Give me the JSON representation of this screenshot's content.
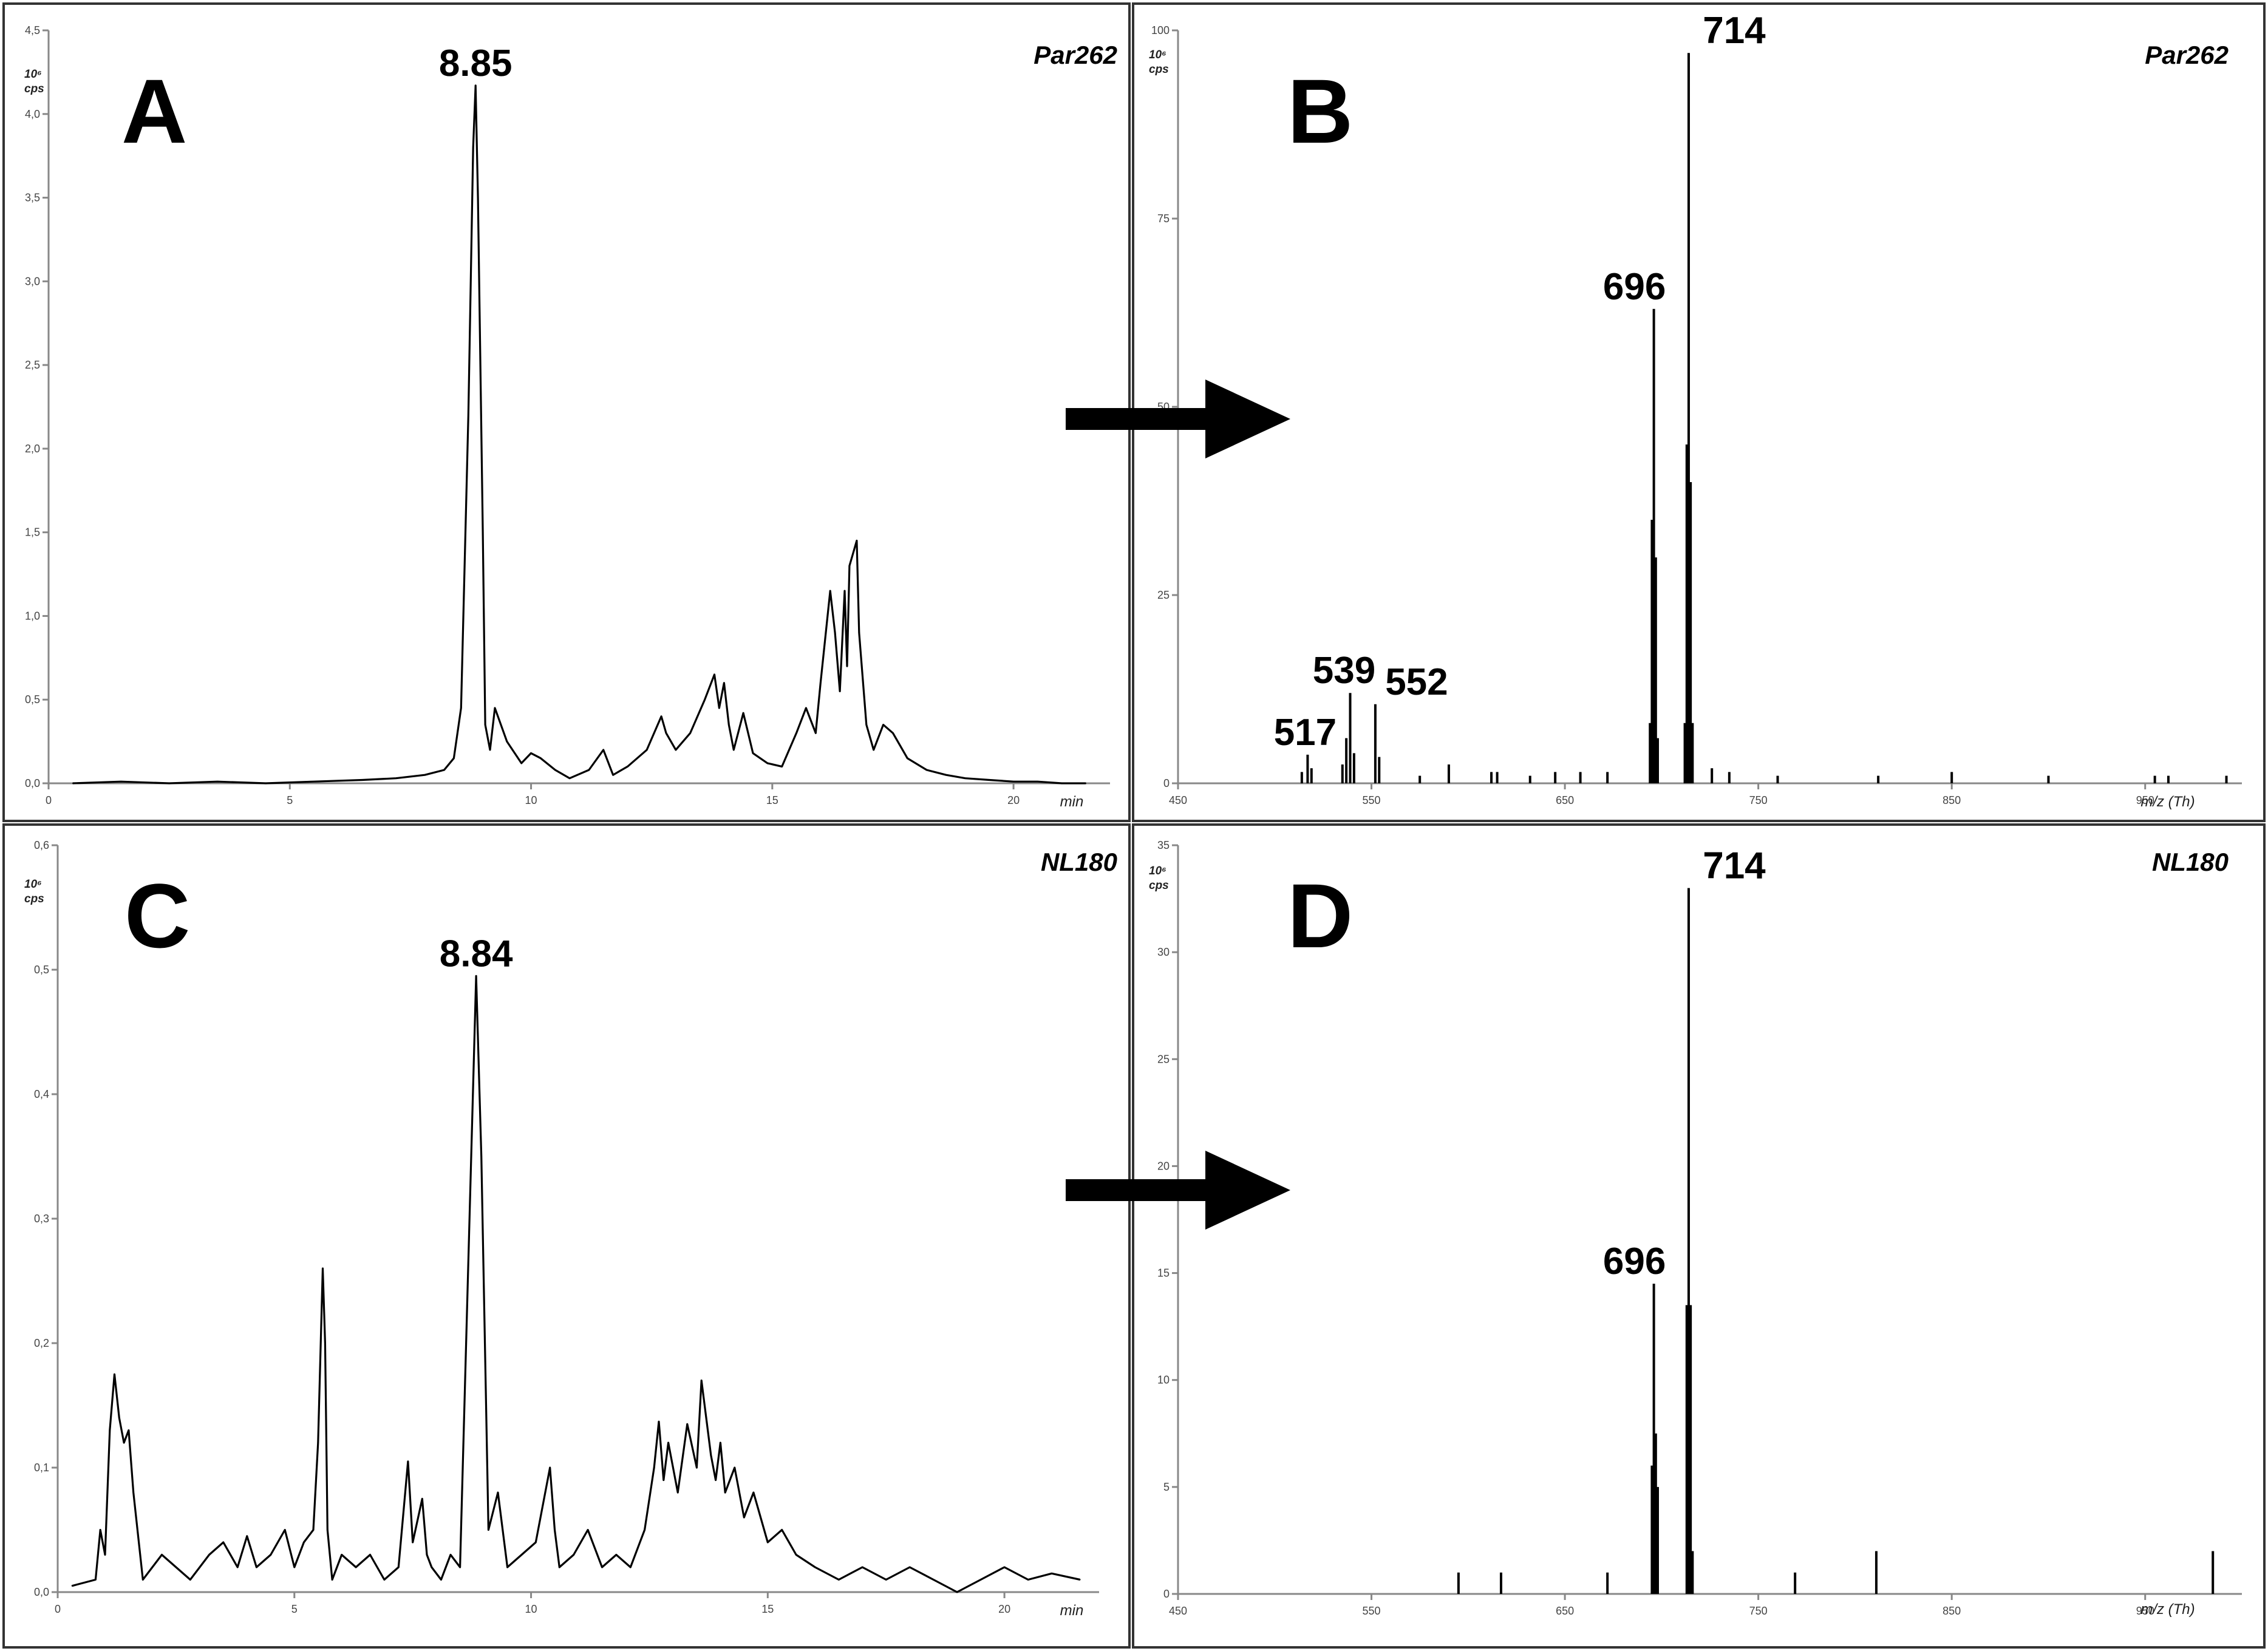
{
  "chart_data": [
    {
      "id": "A",
      "type": "line",
      "panel_letter": "A",
      "sample_label": "Par262",
      "unit_label": [
        "10⁶",
        "cps"
      ],
      "xlabel": "min",
      "xlim": [
        0,
        22
      ],
      "ylim": [
        0,
        4.5
      ],
      "x_ticks": [
        {
          "v": 0,
          "label": "0"
        },
        {
          "v": 5,
          "label": "5"
        },
        {
          "v": 10,
          "label": "10"
        },
        {
          "v": 15,
          "label": "15"
        },
        {
          "v": 20,
          "label": "20"
        }
      ],
      "y_ticks": [
        {
          "v": 0,
          "label": "0,0"
        },
        {
          "v": 0.5,
          "label": "0,5"
        },
        {
          "v": 1.0,
          "label": "1,0"
        },
        {
          "v": 1.5,
          "label": "1,5"
        },
        {
          "v": 2.0,
          "label": "2,0"
        },
        {
          "v": 2.5,
          "label": "2,5"
        },
        {
          "v": 3.0,
          "label": "3,0"
        },
        {
          "v": 3.5,
          "label": "3,5"
        },
        {
          "v": 4.0,
          "label": "4,0"
        },
        {
          "v": 4.5,
          "label": "4,5"
        }
      ],
      "peak_labels": [
        {
          "text": "8.85",
          "x": 8.85,
          "y": 4.17
        }
      ],
      "x": [
        0.5,
        1.5,
        2.5,
        3.5,
        4.5,
        5.5,
        6.5,
        7.2,
        7.8,
        8.2,
        8.4,
        8.55,
        8.7,
        8.8,
        8.85,
        8.9,
        9.0,
        9.05,
        9.15,
        9.25,
        9.5,
        9.8,
        10.0,
        10.2,
        10.5,
        10.8,
        11.2,
        11.5,
        11.7,
        12.0,
        12.4,
        12.7,
        12.8,
        13.0,
        13.3,
        13.6,
        13.8,
        13.9,
        14.0,
        14.1,
        14.2,
        14.4,
        14.6,
        14.9,
        15.2,
        15.5,
        15.7,
        15.9,
        16.0,
        16.2,
        16.3,
        16.4,
        16.5,
        16.55,
        16.6,
        16.75,
        16.8,
        16.95,
        17.1,
        17.3,
        17.5,
        17.8,
        18.2,
        18.6,
        19.0,
        19.5,
        20.0,
        20.5,
        21.0,
        21.5
      ],
      "y": [
        0.0,
        0.01,
        0.0,
        0.01,
        0.0,
        0.01,
        0.02,
        0.03,
        0.05,
        0.08,
        0.15,
        0.45,
        2.2,
        3.8,
        4.17,
        3.5,
        1.5,
        0.35,
        0.2,
        0.45,
        0.25,
        0.12,
        0.18,
        0.15,
        0.08,
        0.03,
        0.08,
        0.2,
        0.05,
        0.1,
        0.2,
        0.4,
        0.3,
        0.2,
        0.3,
        0.5,
        0.65,
        0.45,
        0.6,
        0.35,
        0.2,
        0.42,
        0.18,
        0.12,
        0.1,
        0.3,
        0.45,
        0.3,
        0.6,
        1.15,
        0.9,
        0.55,
        1.15,
        0.7,
        1.3,
        1.45,
        0.9,
        0.35,
        0.2,
        0.35,
        0.3,
        0.15,
        0.08,
        0.05,
        0.03,
        0.02,
        0.01,
        0.01,
        0.0,
        0.0
      ]
    },
    {
      "id": "B",
      "type": "bar",
      "panel_letter": "B",
      "sample_label": "Par262",
      "unit_label": [
        "10⁶",
        "cps"
      ],
      "xlabel": "m/z (Th)",
      "xlim": [
        450,
        1000
      ],
      "ylim": [
        0,
        100
      ],
      "x_ticks": [
        {
          "v": 450,
          "label": "450"
        },
        {
          "v": 550,
          "label": "550"
        },
        {
          "v": 650,
          "label": "650"
        },
        {
          "v": 750,
          "label": "750"
        },
        {
          "v": 850,
          "label": "850"
        },
        {
          "v": 950,
          "label": "950"
        }
      ],
      "y_ticks": [
        {
          "v": 0,
          "label": "0"
        },
        {
          "v": 25,
          "label": "25"
        },
        {
          "v": 50,
          "label": "50"
        },
        {
          "v": 75,
          "label": "75"
        },
        {
          "v": 100,
          "label": "100"
        }
      ],
      "peak_labels": [
        {
          "text": "714",
          "x": 714,
          "y": 97
        },
        {
          "text": "696",
          "x": 696,
          "y": 63
        },
        {
          "text": "539",
          "x": 539,
          "y": 12
        },
        {
          "text": "552",
          "x": 552,
          "y": 10.5
        },
        {
          "text": "517",
          "x": 517,
          "y": 3.8
        }
      ],
      "x": [
        514,
        517,
        519,
        535,
        537,
        539,
        541,
        552,
        554,
        575,
        590,
        612,
        615,
        632,
        645,
        658,
        672,
        694,
        695,
        696,
        697,
        698,
        712,
        713,
        714,
        715,
        716,
        726,
        735,
        760,
        812,
        850,
        900,
        955,
        962,
        992
      ],
      "y": [
        1.5,
        3.8,
        2.0,
        2.5,
        6.0,
        12.0,
        4.0,
        10.5,
        3.5,
        1.0,
        2.5,
        1.5,
        1.5,
        1.0,
        1.5,
        1.5,
        1.5,
        8.0,
        35.0,
        63.0,
        30.0,
        6.0,
        8.0,
        45.0,
        97.0,
        40.0,
        8.0,
        2.0,
        1.5,
        1.0,
        1.0,
        1.5,
        1.0,
        1.0,
        1.0,
        1.0
      ]
    },
    {
      "id": "C",
      "type": "line",
      "panel_letter": "C",
      "sample_label": "NL180",
      "unit_label": [
        "10⁶",
        "cps"
      ],
      "xlabel": "min",
      "xlim": [
        0,
        22
      ],
      "ylim": [
        0,
        0.6
      ],
      "x_ticks": [
        {
          "v": 0,
          "label": "0"
        },
        {
          "v": 5,
          "label": "5"
        },
        {
          "v": 10,
          "label": "10"
        },
        {
          "v": 15,
          "label": "15"
        },
        {
          "v": 20,
          "label": "20"
        }
      ],
      "y_ticks": [
        {
          "v": 0,
          "label": "0,0"
        },
        {
          "v": 0.1,
          "label": "0,1"
        },
        {
          "v": 0.2,
          "label": "0,2"
        },
        {
          "v": 0.3,
          "label": "0,3"
        },
        {
          "v": 0.4,
          "label": "0,4"
        },
        {
          "v": 0.5,
          "label": "0,5"
        },
        {
          "v": 0.6,
          "label": "0,6"
        }
      ],
      "peak_labels": [
        {
          "text": "8.84",
          "x": 8.84,
          "y": 0.495
        }
      ],
      "x": [
        0.3,
        0.8,
        0.9,
        1.0,
        1.1,
        1.2,
        1.3,
        1.4,
        1.5,
        1.6,
        1.8,
        2.0,
        2.2,
        2.5,
        2.8,
        3.2,
        3.5,
        3.8,
        4.0,
        4.2,
        4.5,
        4.8,
        5.0,
        5.2,
        5.4,
        5.5,
        5.6,
        5.65,
        5.7,
        5.8,
        6.0,
        6.3,
        6.6,
        6.9,
        7.2,
        7.4,
        7.5,
        7.7,
        7.8,
        7.9,
        8.1,
        8.3,
        8.5,
        8.7,
        8.84,
        8.95,
        9.1,
        9.3,
        9.5,
        9.8,
        10.1,
        10.4,
        10.5,
        10.6,
        10.9,
        11.2,
        11.5,
        11.8,
        12.1,
        12.4,
        12.6,
        12.7,
        12.8,
        12.9,
        13.1,
        13.3,
        13.5,
        13.6,
        13.7,
        13.8,
        13.9,
        14.0,
        14.1,
        14.3,
        14.5,
        14.7,
        15.0,
        15.3,
        15.6,
        16.0,
        16.5,
        17.0,
        17.5,
        18.0,
        18.5,
        19.0,
        19.5,
        20.0,
        20.5,
        21.0,
        21.6
      ],
      "y": [
        0.005,
        0.01,
        0.05,
        0.03,
        0.13,
        0.175,
        0.14,
        0.12,
        0.13,
        0.08,
        0.01,
        0.02,
        0.03,
        0.02,
        0.01,
        0.03,
        0.04,
        0.02,
        0.045,
        0.02,
        0.03,
        0.05,
        0.02,
        0.04,
        0.05,
        0.12,
        0.26,
        0.2,
        0.05,
        0.01,
        0.03,
        0.02,
        0.03,
        0.01,
        0.02,
        0.105,
        0.04,
        0.075,
        0.03,
        0.02,
        0.01,
        0.03,
        0.02,
        0.3,
        0.495,
        0.35,
        0.05,
        0.08,
        0.02,
        0.03,
        0.04,
        0.1,
        0.05,
        0.02,
        0.03,
        0.05,
        0.02,
        0.03,
        0.02,
        0.05,
        0.1,
        0.137,
        0.09,
        0.12,
        0.08,
        0.135,
        0.1,
        0.17,
        0.14,
        0.11,
        0.09,
        0.12,
        0.08,
        0.1,
        0.06,
        0.08,
        0.04,
        0.05,
        0.03,
        0.02,
        0.01,
        0.02,
        0.01,
        0.02,
        0.01,
        0.0,
        0.01,
        0.02,
        0.01,
        0.015,
        0.01
      ]
    },
    {
      "id": "D",
      "type": "bar",
      "panel_letter": "D",
      "sample_label": "NL180",
      "unit_label": [
        "10⁶",
        "cps"
      ],
      "xlabel": "m/z (Th)",
      "xlim": [
        450,
        1000
      ],
      "ylim": [
        0,
        35
      ],
      "x_ticks": [
        {
          "v": 450,
          "label": "450"
        },
        {
          "v": 550,
          "label": "550"
        },
        {
          "v": 650,
          "label": "650"
        },
        {
          "v": 750,
          "label": "750"
        },
        {
          "v": 850,
          "label": "850"
        },
        {
          "v": 950,
          "label": "950"
        }
      ],
      "y_ticks": [
        {
          "v": 0,
          "label": "0"
        },
        {
          "v": 5,
          "label": "5"
        },
        {
          "v": 10,
          "label": "10"
        },
        {
          "v": 15,
          "label": "15"
        },
        {
          "v": 20,
          "label": "20"
        },
        {
          "v": 25,
          "label": "25"
        },
        {
          "v": 30,
          "label": "30"
        },
        {
          "v": 35,
          "label": "35"
        }
      ],
      "peak_labels": [
        {
          "text": "714",
          "x": 714,
          "y": 33
        },
        {
          "text": "696",
          "x": 696,
          "y": 14.5
        }
      ],
      "x": [
        595,
        617,
        672,
        695,
        696,
        697,
        698,
        713,
        714,
        715,
        716,
        769,
        811,
        985
      ],
      "y": [
        1.0,
        1.0,
        1.0,
        6.0,
        14.5,
        7.5,
        5.0,
        13.5,
        33.0,
        13.5,
        2.0,
        1.0,
        2.0,
        2.0
      ]
    }
  ]
}
